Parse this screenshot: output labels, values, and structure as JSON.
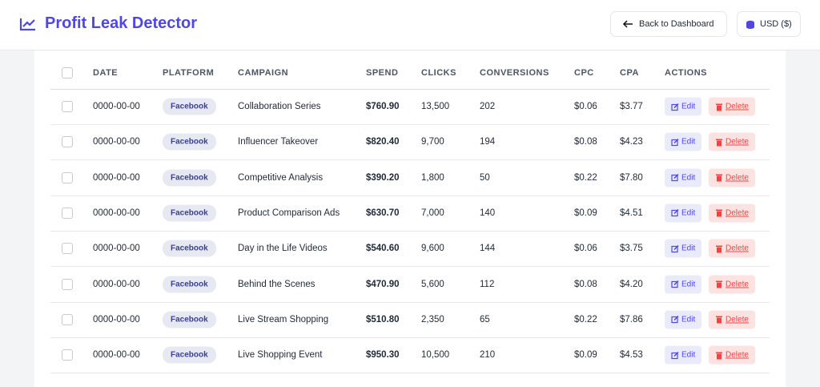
{
  "header": {
    "title": "Profit Leak Detector",
    "back_button": "Back to Dashboard",
    "currency_button": "USD ($)"
  },
  "table": {
    "columns": [
      "DATE",
      "PLATFORM",
      "CAMPAIGN",
      "SPEND",
      "CLICKS",
      "CONVERSIONS",
      "CPC",
      "CPA",
      "ACTIONS"
    ],
    "actions": {
      "edit": "Edit",
      "delete": "Delete"
    },
    "rows": [
      [
        "0000-00-00",
        "Facebook",
        "Collaboration Series",
        "$760.90",
        "13,500",
        "202",
        "$0.06",
        "$3.77"
      ],
      [
        "0000-00-00",
        "Facebook",
        "Influencer Takeover",
        "$820.40",
        "9,700",
        "194",
        "$0.08",
        "$4.23"
      ],
      [
        "0000-00-00",
        "Facebook",
        "Competitive Analysis",
        "$390.20",
        "1,800",
        "50",
        "$0.22",
        "$7.80"
      ],
      [
        "0000-00-00",
        "Facebook",
        "Product Comparison Ads",
        "$630.70",
        "7,000",
        "140",
        "$0.09",
        "$4.51"
      ],
      [
        "0000-00-00",
        "Facebook",
        "Day in the Life Videos",
        "$540.60",
        "9,600",
        "144",
        "$0.06",
        "$3.75"
      ],
      [
        "0000-00-00",
        "Facebook",
        "Behind the Scenes",
        "$470.90",
        "5,600",
        "112",
        "$0.08",
        "$4.20"
      ],
      [
        "0000-00-00",
        "Facebook",
        "Live Stream Shopping",
        "$510.80",
        "2,350",
        "65",
        "$0.22",
        "$7.86"
      ],
      [
        "0000-00-00",
        "Facebook",
        "Live Shopping Event",
        "$950.30",
        "10,500",
        "210",
        "$0.09",
        "$4.53"
      ]
    ]
  }
}
